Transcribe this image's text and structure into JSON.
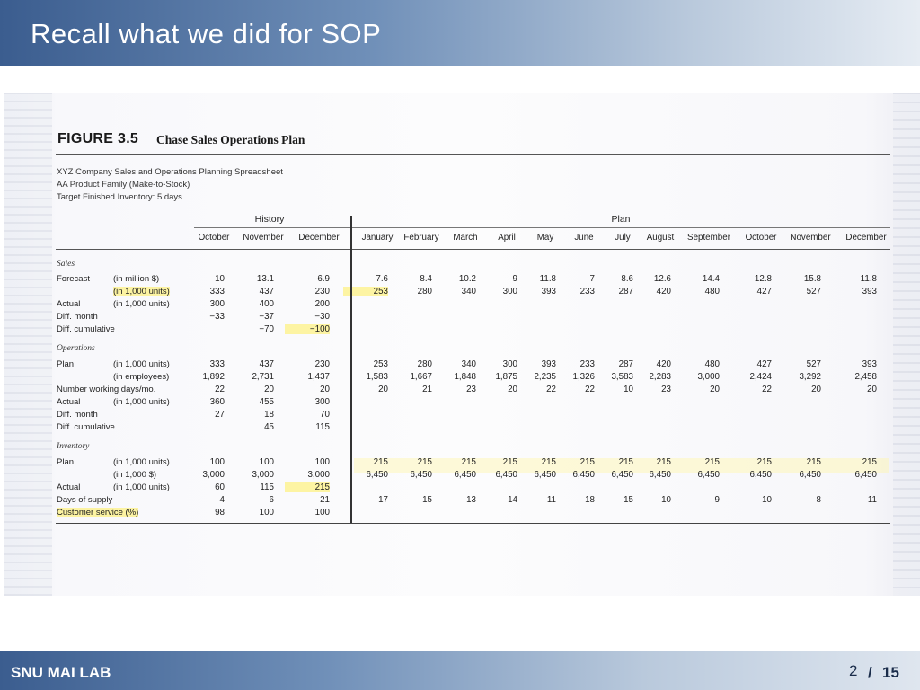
{
  "slide": {
    "title": "Recall what we did for SOP",
    "footer_lab": "SNU MAI LAB",
    "page_current": "2",
    "page_separator": "/",
    "page_total": "15"
  },
  "figure": {
    "label": "FIGURE 3.5",
    "title": "Chase Sales Operations Plan",
    "subtitles": [
      "XYZ Company Sales and Operations Planning Spreadsheet",
      "AA Product Family (Make-to-Stock)",
      "Target Finished Inventory: 5 days"
    ],
    "group_history": "History",
    "group_plan": "Plan",
    "columns": [
      "October",
      "November",
      "December",
      "January",
      "February",
      "March",
      "April",
      "May",
      "June",
      "July",
      "August",
      "September",
      "October",
      "November",
      "December"
    ],
    "sections": {
      "sales": "Sales",
      "operations": "Operations",
      "inventory": "Inventory"
    },
    "rows": [
      {
        "label": "Forecast",
        "unit": "(in million $)",
        "values": [
          "10",
          "13.1",
          "6.9",
          "7.6",
          "8.4",
          "10.2",
          "9",
          "11.8",
          "7",
          "8.6",
          "12.6",
          "14.4",
          "12.8",
          "15.8",
          "11.8"
        ]
      },
      {
        "label": "",
        "unit": "(in 1,000 units)",
        "values": [
          "333",
          "437",
          "230",
          "253",
          "280",
          "340",
          "300",
          "393",
          "233",
          "287",
          "420",
          "480",
          "427",
          "527",
          "393"
        ]
      },
      {
        "label": "Actual",
        "unit": "(in 1,000 units)",
        "values": [
          "300",
          "400",
          "200",
          "",
          "",
          "",
          "",
          "",
          "",
          "",
          "",
          "",
          "",
          "",
          ""
        ]
      },
      {
        "label": "Diff. month",
        "unit": "",
        "values": [
          "−33",
          "−37",
          "−30",
          "",
          "",
          "",
          "",
          "",
          "",
          "",
          "",
          "",
          "",
          "",
          ""
        ]
      },
      {
        "label": "Diff. cumulative",
        "unit": "",
        "values": [
          "",
          "−70",
          "−100",
          "",
          "",
          "",
          "",
          "",
          "",
          "",
          "",
          "",
          "",
          "",
          ""
        ]
      },
      {
        "label": "Plan",
        "unit": "(in 1,000 units)",
        "values": [
          "333",
          "437",
          "230",
          "253",
          "280",
          "340",
          "300",
          "393",
          "233",
          "287",
          "420",
          "480",
          "427",
          "527",
          "393"
        ]
      },
      {
        "label": "",
        "unit": "(in employees)",
        "values": [
          "1,892",
          "2,731",
          "1,437",
          "1,583",
          "1,667",
          "1,848",
          "1,875",
          "2,235",
          "1,326",
          "3,583",
          "2,283",
          "3,000",
          "2,424",
          "3,292",
          "2,458"
        ]
      },
      {
        "label": "Number working days/mo.",
        "unit": "",
        "values": [
          "22",
          "20",
          "20",
          "20",
          "21",
          "23",
          "20",
          "22",
          "22",
          "10",
          "23",
          "20",
          "22",
          "20",
          "20"
        ]
      },
      {
        "label": "Actual",
        "unit": "(in 1,000 units)",
        "values": [
          "360",
          "455",
          "300",
          "",
          "",
          "",
          "",
          "",
          "",
          "",
          "",
          "",
          "",
          "",
          ""
        ]
      },
      {
        "label": "Diff. month",
        "unit": "",
        "values": [
          "27",
          "18",
          "70",
          "",
          "",
          "",
          "",
          "",
          "",
          "",
          "",
          "",
          "",
          "",
          ""
        ]
      },
      {
        "label": "Diff. cumulative",
        "unit": "",
        "values": [
          "",
          "45",
          "115",
          "",
          "",
          "",
          "",
          "",
          "",
          "",
          "",
          "",
          "",
          "",
          ""
        ]
      },
      {
        "label": "Plan",
        "unit": "(in 1,000 units)",
        "values": [
          "100",
          "100",
          "100",
          "215",
          "215",
          "215",
          "215",
          "215",
          "215",
          "215",
          "215",
          "215",
          "215",
          "215",
          "215"
        ]
      },
      {
        "label": "",
        "unit": "(in 1,000 $)",
        "values": [
          "3,000",
          "3,000",
          "3,000",
          "6,450",
          "6,450",
          "6,450",
          "6,450",
          "6,450",
          "6,450",
          "6,450",
          "6,450",
          "6,450",
          "6,450",
          "6,450",
          "6,450"
        ]
      },
      {
        "label": "Actual",
        "unit": "(in 1,000 units)",
        "values": [
          "60",
          "115",
          "215",
          "",
          "",
          "",
          "",
          "",
          "",
          "",
          "",
          "",
          "",
          "",
          ""
        ]
      },
      {
        "label": "Days of supply",
        "unit": "",
        "values": [
          "4",
          "6",
          "21",
          "17",
          "15",
          "13",
          "14",
          "11",
          "18",
          "15",
          "10",
          "9",
          "10",
          "8",
          "11"
        ]
      },
      {
        "label": "Customer service (%)",
        "unit": "",
        "values": [
          "98",
          "100",
          "100",
          "",
          "",
          "",
          "",
          "",
          "",
          "",
          "",
          "",
          "",
          "",
          ""
        ]
      }
    ]
  }
}
